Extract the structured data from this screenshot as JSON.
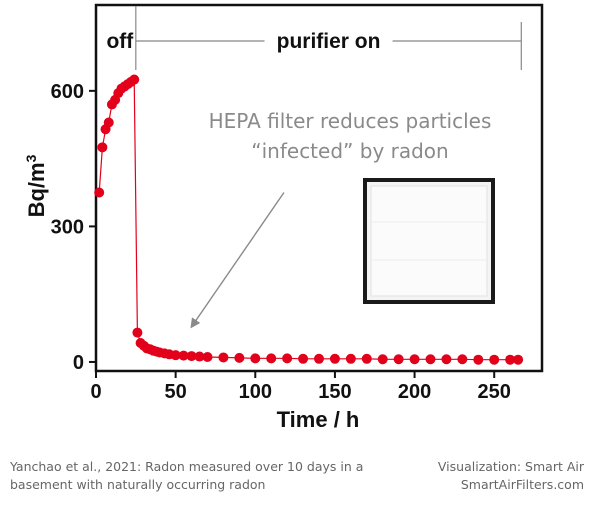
{
  "chart_data": {
    "type": "scatter",
    "xlabel": "Time / h",
    "ylabel": "Bq/m",
    "ylabel_sup": "3",
    "xlim": [
      0,
      280
    ],
    "ylim": [
      -20,
      790
    ],
    "x_ticks": [
      0,
      50,
      100,
      150,
      200,
      250
    ],
    "y_ticks": [
      0,
      300,
      600
    ],
    "grid": false,
    "marker_color": "#e3001b",
    "phases": [
      {
        "label": "off",
        "x_start": 0,
        "x_end": 25
      },
      {
        "label": "purifier on",
        "x_start": 25,
        "x_end": 267
      }
    ],
    "annotation": {
      "line1": "HEPA filter reduces particles",
      "line2": "“infected” by radon",
      "arrow_tip": [
        60,
        78
      ],
      "arrow_tail": [
        118,
        375
      ]
    },
    "inset_image": "hepa-filter-panel",
    "series": [
      {
        "x": [
          2,
          4,
          6,
          8,
          10,
          12,
          14,
          16,
          18,
          20,
          22,
          24,
          26,
          28,
          30,
          32,
          34,
          36,
          38,
          40,
          43,
          46,
          50,
          55,
          60,
          65,
          70,
          80,
          90,
          100,
          110,
          120,
          130,
          140,
          150,
          160,
          170,
          180,
          190,
          200,
          210,
          220,
          230,
          240,
          250,
          260,
          265
        ],
        "y": [
          375,
          475,
          515,
          530,
          570,
          580,
          595,
          605,
          610,
          615,
          620,
          625,
          65,
          42,
          36,
          30,
          28,
          25,
          23,
          21,
          19,
          17,
          15,
          14,
          13,
          12,
          11,
          10,
          9,
          8,
          8,
          8,
          7,
          7,
          7,
          7,
          7,
          6,
          6,
          6,
          6,
          6,
          6,
          5,
          5,
          5,
          5
        ]
      }
    ]
  },
  "footer": {
    "source_line1": "Yanchao et al., 2021: Radon measured over 10 days in a",
    "source_line2": "basement with naturally occurring radon",
    "credit_line1": "Visualization: Smart Air",
    "credit_line2": "SmartAirFilters.com"
  }
}
